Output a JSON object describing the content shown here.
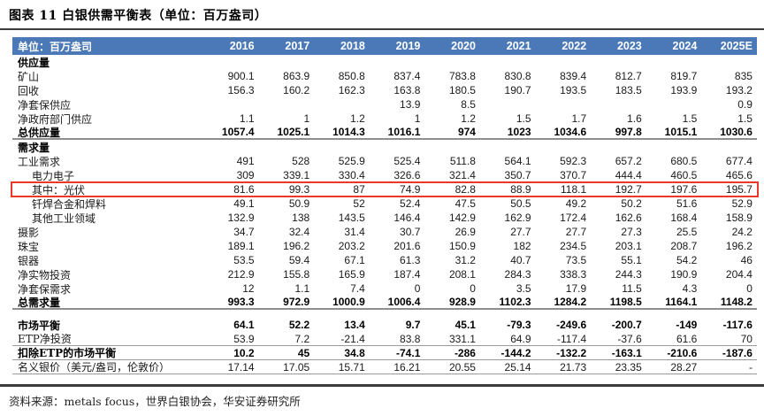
{
  "title": "图表 11 白银供需平衡表（单位：百万盎司）",
  "source_note": "资料来源：metals focus，世界白银协会，华安证券研究所",
  "colors": {
    "header_bg": "#4b79b7",
    "header_text": "#ffffff",
    "highlight_border": "#e8392e",
    "rule_dark": "#3c3c3c",
    "rule_gray": "#8f8f8f",
    "rule_gray_thin": "#9a9a9a"
  },
  "table": {
    "unit_label": "单位：百万盎司",
    "years": [
      "2016",
      "2017",
      "2018",
      "2019",
      "2020",
      "2021",
      "2022",
      "2023",
      "2024",
      "2025E"
    ],
    "rows": [
      {
        "label": "供应量",
        "bold": true,
        "values": [
          "",
          "",
          "",
          "",
          "",
          "",
          "",
          "",
          "",
          ""
        ]
      },
      {
        "label": "矿山",
        "values": [
          "900.1",
          "863.9",
          "850.8",
          "837.4",
          "783.8",
          "830.8",
          "839.4",
          "812.7",
          "819.7",
          "835"
        ]
      },
      {
        "label": "回收",
        "values": [
          "156.3",
          "160.2",
          "162.3",
          "163.8",
          "180.5",
          "190.7",
          "193.5",
          "183.5",
          "193.9",
          "193.2"
        ]
      },
      {
        "label": "净套保供应",
        "values": [
          "",
          "",
          "",
          "13.9",
          "8.5",
          "",
          "",
          "",
          "",
          "0.9"
        ]
      },
      {
        "label": "净政府部门供应",
        "values": [
          "1.1",
          "1",
          "1.2",
          "1",
          "1.2",
          "1.5",
          "1.7",
          "1.6",
          "1.5",
          "1.5"
        ]
      },
      {
        "label": "总供应量",
        "bold": true,
        "rule": "thick",
        "values": [
          "1057.4",
          "1025.1",
          "1014.3",
          "1016.1",
          "974",
          "1023",
          "1034.6",
          "997.8",
          "1015.1",
          "1030.6"
        ]
      },
      {
        "label": "需求量",
        "bold": true,
        "values": [
          "",
          "",
          "",
          "",
          "",
          "",
          "",
          "",
          "",
          ""
        ]
      },
      {
        "label": "工业需求",
        "values": [
          "491",
          "528",
          "525.9",
          "525.4",
          "511.8",
          "564.1",
          "592.3",
          "657.2",
          "680.5",
          "677.4"
        ]
      },
      {
        "label": "电力电子",
        "indent": true,
        "values": [
          "309",
          "339.1",
          "330.4",
          "326.6",
          "321.4",
          "350.7",
          "370.7",
          "444.4",
          "460.5",
          "465.6"
        ]
      },
      {
        "label": "其中：光伏",
        "indent": true,
        "highlight": true,
        "values": [
          "81.6",
          "99.3",
          "87",
          "74.9",
          "82.8",
          "88.9",
          "118.1",
          "192.7",
          "197.6",
          "195.7"
        ]
      },
      {
        "label": "钎焊合金和焊料",
        "indent": true,
        "values": [
          "49.1",
          "50.9",
          "52",
          "52.4",
          "47.5",
          "50.5",
          "49.2",
          "50.2",
          "51.6",
          "52.9"
        ]
      },
      {
        "label": "其他工业领域",
        "indent": true,
        "values": [
          "132.9",
          "138",
          "143.5",
          "146.4",
          "142.9",
          "162.9",
          "172.4",
          "162.6",
          "168.4",
          "158.9"
        ]
      },
      {
        "label": "摄影",
        "values": [
          "34.7",
          "32.4",
          "31.4",
          "30.7",
          "26.9",
          "27.7",
          "27.7",
          "27.3",
          "25.5",
          "24.2"
        ]
      },
      {
        "label": "珠宝",
        "values": [
          "189.1",
          "196.2",
          "203.2",
          "201.6",
          "150.9",
          "182",
          "234.5",
          "203.1",
          "208.7",
          "196.2"
        ]
      },
      {
        "label": "银器",
        "values": [
          "53.5",
          "59.4",
          "67.1",
          "61.3",
          "31.2",
          "40.7",
          "73.5",
          "55.1",
          "54.2",
          "46"
        ]
      },
      {
        "label": "净实物投资",
        "values": [
          "212.9",
          "155.8",
          "165.9",
          "187.4",
          "208.1",
          "284.3",
          "338.3",
          "244.3",
          "190.9",
          "204.4"
        ]
      },
      {
        "label": "净套保需求",
        "values": [
          "12",
          "1.1",
          "7.4",
          "0",
          "0",
          "3.5",
          "17.9",
          "11.5",
          "4.3",
          "0"
        ]
      },
      {
        "label": "总需求量",
        "bold": true,
        "rule": "thick",
        "values": [
          "993.3",
          "972.9",
          "1000.9",
          "1006.4",
          "928.9",
          "1102.3",
          "1284.2",
          "1198.5",
          "1164.1",
          "1148.2"
        ]
      },
      {
        "spacer": true
      },
      {
        "label": "市场平衡",
        "bold": true,
        "values": [
          "64.1",
          "52.2",
          "13.4",
          "9.7",
          "45.1",
          "-79.3",
          "-249.6",
          "-200.7",
          "-149",
          "-117.6"
        ]
      },
      {
        "label": "ETP净投资",
        "rule": "thin",
        "values": [
          "53.9",
          "7.2",
          "-21.4",
          "83.8",
          "331.1",
          "64.9",
          "-117.4",
          "-37.6",
          "61.6",
          "70"
        ]
      },
      {
        "label": "扣除ETP的市场平衡",
        "bold": true,
        "rule": "thin",
        "values": [
          "10.2",
          "45",
          "34.8",
          "-74.1",
          "-286",
          "-144.2",
          "-132.2",
          "-163.1",
          "-210.6",
          "-187.6"
        ]
      },
      {
        "label": "名义银价（美元/盎司，伦敦价）",
        "rule": "thin",
        "values": [
          "17.14",
          "17.05",
          "15.71",
          "16.21",
          "20.55",
          "25.14",
          "21.73",
          "23.35",
          "28.27",
          "-"
        ]
      }
    ]
  }
}
